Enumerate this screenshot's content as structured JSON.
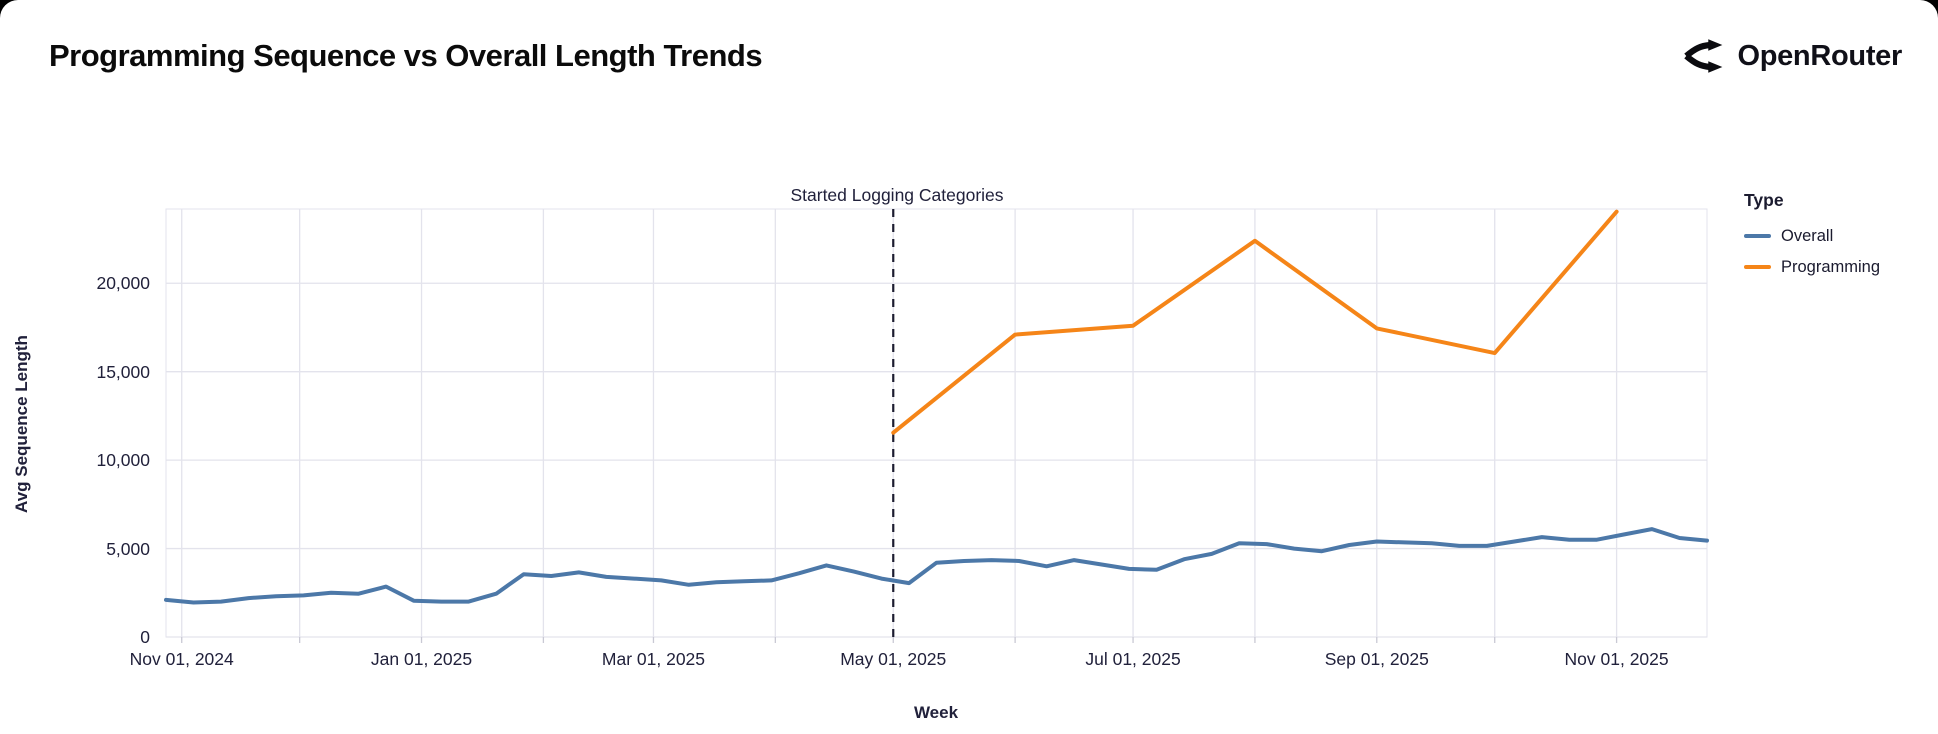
{
  "header": {
    "title": "Programming Sequence vs Overall Length Trends",
    "brand": "OpenRouter"
  },
  "chart_data": {
    "type": "line",
    "title": "Programming Sequence vs Overall Length Trends",
    "xlabel": "Week",
    "ylabel": "Avg Sequence Length",
    "x_domain": [
      "2024-10-28",
      "2025-11-24"
    ],
    "ylim": [
      0,
      24200
    ],
    "grid": true,
    "y_ticks": [
      {
        "value": 0,
        "label": "0"
      },
      {
        "value": 5000,
        "label": "5,000"
      },
      {
        "value": 10000,
        "label": "10,000"
      },
      {
        "value": 15000,
        "label": "15,000"
      },
      {
        "value": 20000,
        "label": "20,000"
      }
    ],
    "x_ticks": [
      {
        "date": "2024-11-01",
        "label": "Nov 01, 2024"
      },
      {
        "date": "2025-01-01",
        "label": "Jan 01, 2025"
      },
      {
        "date": "2025-03-01",
        "label": "Mar 01, 2025"
      },
      {
        "date": "2025-05-01",
        "label": "May 01, 2025"
      },
      {
        "date": "2025-07-01",
        "label": "Jul 01, 2025"
      },
      {
        "date": "2025-09-01",
        "label": "Sep 01, 2025"
      },
      {
        "date": "2025-11-01",
        "label": "Nov 01, 2025"
      }
    ],
    "month_gridlines": [
      "2024-11-01",
      "2024-12-01",
      "2025-01-01",
      "2025-02-01",
      "2025-03-01",
      "2025-04-01",
      "2025-05-01",
      "2025-06-01",
      "2025-07-01",
      "2025-08-01",
      "2025-09-01",
      "2025-10-01",
      "2025-11-01"
    ],
    "annotation": {
      "label": "Started Logging Categories",
      "date": "2025-05-01"
    },
    "legend": {
      "title": "Type",
      "position": "right"
    },
    "colors": {
      "overall": "#4c78a8",
      "programming": "#f58518",
      "gridline": "#e3e3ec",
      "rule": "#1c1c30"
    },
    "series": [
      {
        "name": "Overall",
        "color": "#4c78a8",
        "points": [
          [
            "2024-10-28",
            2100
          ],
          [
            "2024-11-04",
            1950
          ],
          [
            "2024-11-11",
            2000
          ],
          [
            "2024-11-18",
            2200
          ],
          [
            "2024-11-25",
            2300
          ],
          [
            "2024-12-02",
            2350
          ],
          [
            "2024-12-09",
            2500
          ],
          [
            "2024-12-16",
            2450
          ],
          [
            "2024-12-23",
            2850
          ],
          [
            "2024-12-30",
            2050
          ],
          [
            "2025-01-06",
            2000
          ],
          [
            "2025-01-13",
            2000
          ],
          [
            "2025-01-20",
            2450
          ],
          [
            "2025-01-27",
            3550
          ],
          [
            "2025-02-03",
            3450
          ],
          [
            "2025-02-10",
            3650
          ],
          [
            "2025-02-17",
            3400
          ],
          [
            "2025-02-24",
            3300
          ],
          [
            "2025-03-03",
            3200
          ],
          [
            "2025-03-10",
            2950
          ],
          [
            "2025-03-17",
            3100
          ],
          [
            "2025-03-24",
            3150
          ],
          [
            "2025-03-31",
            3200
          ],
          [
            "2025-04-07",
            3600
          ],
          [
            "2025-04-14",
            4050
          ],
          [
            "2025-04-21",
            3700
          ],
          [
            "2025-04-28",
            3300
          ],
          [
            "2025-05-05",
            3050
          ],
          [
            "2025-05-12",
            4200
          ],
          [
            "2025-05-19",
            4300
          ],
          [
            "2025-05-26",
            4350
          ],
          [
            "2025-06-02",
            4300
          ],
          [
            "2025-06-09",
            4000
          ],
          [
            "2025-06-16",
            4350
          ],
          [
            "2025-06-23",
            4100
          ],
          [
            "2025-06-30",
            3850
          ],
          [
            "2025-07-07",
            3800
          ],
          [
            "2025-07-14",
            4400
          ],
          [
            "2025-07-21",
            4700
          ],
          [
            "2025-07-28",
            5300
          ],
          [
            "2025-08-04",
            5250
          ],
          [
            "2025-08-11",
            5000
          ],
          [
            "2025-08-18",
            4850
          ],
          [
            "2025-08-25",
            5200
          ],
          [
            "2025-09-01",
            5400
          ],
          [
            "2025-09-08",
            5350
          ],
          [
            "2025-09-15",
            5300
          ],
          [
            "2025-09-22",
            5150
          ],
          [
            "2025-09-29",
            5150
          ],
          [
            "2025-10-06",
            5400
          ],
          [
            "2025-10-13",
            5650
          ],
          [
            "2025-10-20",
            5500
          ],
          [
            "2025-10-27",
            5500
          ],
          [
            "2025-11-03",
            5800
          ],
          [
            "2025-11-10",
            6100
          ],
          [
            "2025-11-17",
            5600
          ],
          [
            "2025-11-24",
            5450
          ]
        ]
      },
      {
        "name": "Programming",
        "color": "#f58518",
        "points": [
          [
            "2025-05-01",
            11550
          ],
          [
            "2025-06-01",
            17100
          ],
          [
            "2025-07-01",
            17600
          ],
          [
            "2025-08-01",
            22400
          ],
          [
            "2025-09-01",
            17450
          ],
          [
            "2025-10-01",
            16050
          ],
          [
            "2025-11-01",
            24050
          ]
        ]
      }
    ]
  }
}
